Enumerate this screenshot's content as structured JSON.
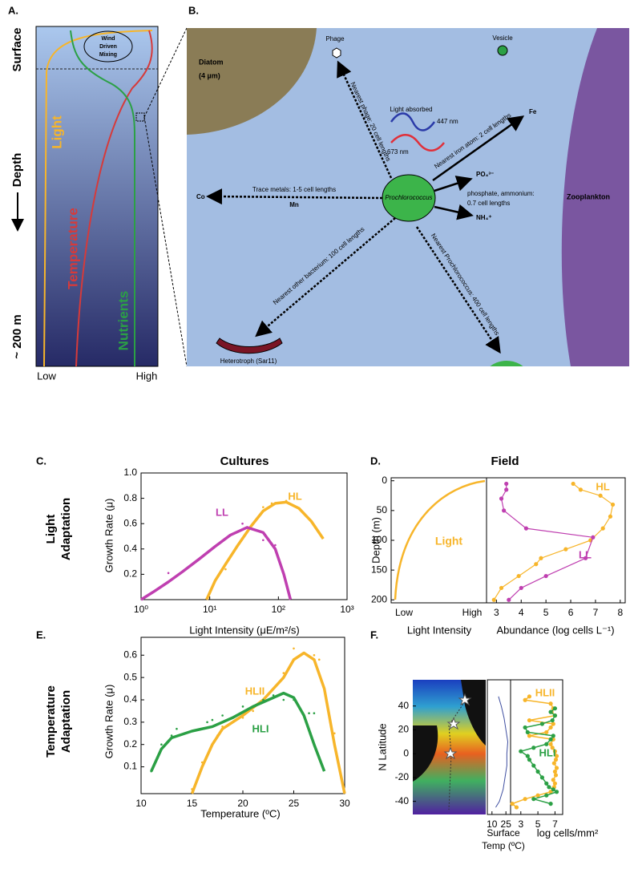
{
  "panels": {
    "a": {
      "label": "A.",
      "surface": "Surface",
      "depth": "Depth",
      "bottom": "~ 200 m",
      "low": "Low",
      "high": "High",
      "mixing": [
        "Wind",
        "Driven",
        "Mixing"
      ],
      "light": "Light",
      "temperature": "Temperature",
      "nutrients": "Nutrients"
    },
    "b": {
      "label": "B.",
      "diatom": "Diatom",
      "diatom_size": "(4 µm)",
      "phage": "Phage",
      "vesicle": "Vesicle",
      "light_absorbed": "Light absorbed",
      "nm447": "447 nm",
      "nm673": "673 nm",
      "nearest_phage": "Nearest phage: 20 cell lengths",
      "nearest_iron": "Nearest iron atom: 2 cell lengths",
      "fe": "Fe",
      "po4": "PO₄³⁻",
      "phosphate": [
        "phosphate, ammonium:",
        "0.7 cell lengths"
      ],
      "nh4": "NH₄⁺",
      "trace": "Trace metals: 1-5 cell lengths",
      "co": "Co",
      "mn": "Mn",
      "prochlorococcus": "Prochlorococcus",
      "zooplankton": "Zooplankton",
      "nearest_bacterium": "Nearest other bacterium: 100 cell lengths",
      "heterotroph": "Heterotroph (Sar11)",
      "nearest_pro": "Nearest Prochlorococcus: 400 cell lengths"
    },
    "c": {
      "label": "C.",
      "row_label": [
        "Light",
        "Adaptation"
      ]
    },
    "d": {
      "label": "D."
    },
    "e": {
      "label": "E.",
      "row_label": [
        "Temperature",
        "Adaptation"
      ]
    },
    "f": {
      "label": "F."
    }
  },
  "chart_data": [
    {
      "type": "line",
      "title": "Cultures",
      "x_label": "Light Intensity (μE/m²/s)",
      "y_label": "Growth Rate (μ)",
      "xlog": true,
      "xlim": [
        1,
        1000
      ],
      "ylim": [
        0,
        1
      ],
      "xticks": [
        {
          "value": 1,
          "label": "10⁰"
        },
        {
          "value": 10,
          "label": "10¹"
        },
        {
          "value": 100,
          "label": "10²"
        },
        {
          "value": 1000,
          "label": "10³"
        }
      ],
      "yticks": [
        0.2,
        0.4,
        0.6,
        0.8,
        {
          "value": 1,
          "label": "1.0"
        }
      ],
      "series": [
        {
          "name": "HL",
          "color": "#f7b52a",
          "x": [
            9,
            12,
            17,
            25,
            40,
            60,
            90,
            130,
            200,
            300,
            450
          ],
          "values": [
            0,
            0.15,
            0.28,
            0.42,
            0.58,
            0.7,
            0.76,
            0.77,
            0.72,
            0.62,
            0.48
          ],
          "points_x": [
            17,
            60,
            80,
            130
          ],
          "points_values": [
            0.24,
            0.73,
            0.76,
            0.78
          ]
        },
        {
          "name": "LL",
          "color": "#bf3fb0",
          "x": [
            1,
            1.5,
            2.5,
            4,
            7,
            12,
            20,
            35,
            60,
            90,
            120,
            150
          ],
          "values": [
            0,
            0.06,
            0.14,
            0.22,
            0.32,
            0.42,
            0.51,
            0.57,
            0.53,
            0.4,
            0.2,
            0
          ],
          "points_x": [
            2.5,
            12,
            30,
            60,
            90
          ],
          "points_values": [
            0.21,
            0.42,
            0.6,
            0.47,
            0.43
          ]
        }
      ]
    },
    {
      "type": "concept",
      "title": "Field",
      "x_label": "Light Intensity",
      "y_label": "Depth (m)",
      "categories": [
        "Low",
        "High"
      ],
      "curve_label": "Light",
      "color": "#f7b52a",
      "ylim": [
        -5,
        205
      ],
      "yinvert": true,
      "yticks": [
        0,
        50,
        100,
        150,
        200
      ]
    },
    {
      "type": "line",
      "x_label": "Abundance (log cells L⁻¹)",
      "xlim": [
        2.6,
        8.2
      ],
      "xticks": [
        3,
        4,
        5,
        6,
        7,
        8
      ],
      "ylim": [
        -5,
        205
      ],
      "yinvert": true,
      "series": [
        {
          "name": "HL",
          "color": "#f7b52a",
          "markers": true,
          "x": [
            6.1,
            6.4,
            7.2,
            7.7,
            7.6,
            7.3,
            6.8,
            5.8,
            4.8,
            4.6,
            3.9,
            3.2,
            2.9
          ],
          "values": [
            5,
            15,
            25,
            40,
            60,
            80,
            100,
            115,
            130,
            140,
            160,
            180,
            200
          ]
        },
        {
          "name": "LL",
          "color": "#bf3fb0",
          "markers": true,
          "x": [
            3.4,
            3.4,
            3.2,
            3.3,
            4.2,
            6.9,
            6.6,
            5,
            4,
            3.5
          ],
          "values": [
            5,
            15,
            30,
            50,
            80,
            95,
            130,
            160,
            180,
            200
          ]
        }
      ]
    },
    {
      "type": "line",
      "x_label": "Temperature (ºC)",
      "y_label": "Growth Rate (μ)",
      "xlim": [
        10,
        30
      ],
      "ylim": [
        -0.02,
        0.68
      ],
      "xticks": [
        10,
        15,
        20,
        25,
        30
      ],
      "yticks": [
        0.1,
        0.2,
        0.3,
        0.4,
        0.5,
        0.6
      ],
      "series": [
        {
          "name": "HLII",
          "color": "#f7b52a",
          "x": [
            15,
            16,
            17,
            18,
            20,
            22,
            24,
            25,
            26,
            27,
            28,
            29,
            30
          ],
          "values": [
            -0.02,
            0.1,
            0.2,
            0.27,
            0.33,
            0.4,
            0.5,
            0.58,
            0.61,
            0.58,
            0.45,
            0.2,
            -0.02
          ],
          "points_x": [
            15,
            16,
            17.5,
            18,
            20,
            21,
            22,
            23,
            24,
            25,
            26,
            27,
            27.5,
            28,
            29
          ],
          "points_values": [
            0,
            0.12,
            0.24,
            0.28,
            0.32,
            0.35,
            0.4,
            0.45,
            0.52,
            0.63,
            0.61,
            0.6,
            0.58,
            0.45,
            0.25
          ]
        },
        {
          "name": "HLI",
          "color": "#2ba045",
          "x": [
            11,
            12,
            13,
            15,
            17,
            19,
            21,
            23,
            24,
            25,
            26,
            27,
            28
          ],
          "values": [
            0.08,
            0.18,
            0.23,
            0.26,
            0.28,
            0.32,
            0.37,
            0.41,
            0.43,
            0.41,
            0.33,
            0.2,
            0.08
          ],
          "points_x": [
            11,
            12,
            13,
            13.5,
            16.5,
            17,
            18,
            20,
            22,
            23,
            24,
            25,
            26.5,
            27
          ],
          "points_values": [
            0.08,
            0.2,
            0.24,
            0.27,
            0.3,
            0.31,
            0.33,
            0.37,
            0.4,
            0.42,
            0.4,
            0.4,
            0.34,
            0.34
          ]
        }
      ]
    },
    {
      "type": "line",
      "x_label": [
        "Surface",
        "Temp (ºC)"
      ],
      "y_label": "N Latitude",
      "xlim": [
        5,
        30
      ],
      "ylim": [
        -51,
        62
      ],
      "xticks": [
        10,
        25
      ],
      "yticks": [
        -40,
        -20,
        0,
        20,
        40
      ],
      "series": [
        {
          "color": "#3e4ea0",
          "x": [
            17,
            20,
            23,
            25,
            27,
            26,
            26,
            24,
            22,
            18,
            14
          ],
          "values": [
            48,
            40,
            30,
            20,
            10,
            0,
            -10,
            -20,
            -30,
            -40,
            -45
          ]
        }
      ]
    },
    {
      "type": "line",
      "x_label": "log cells/mm²",
      "xlim": [
        1.8,
        7.9
      ],
      "ylim": [
        -51,
        62
      ],
      "xticks": [
        3,
        5,
        7
      ],
      "series": [
        {
          "name": "HLII",
          "color": "#f7b52a",
          "markers": true,
          "x": [
            4,
            3.5,
            6.5,
            6.8,
            6.6,
            7,
            4,
            6.8,
            6.5,
            6,
            4,
            6.8,
            6.5,
            6.7,
            7,
            7.2,
            7.1,
            6.9,
            7.2,
            7,
            7.1,
            6.8,
            7,
            6.9,
            6.5,
            5,
            3.5,
            2,
            2.5
          ],
          "values": [
            48,
            45,
            42,
            38,
            35,
            32,
            28,
            25,
            22,
            18,
            15,
            12,
            8,
            5,
            2,
            -2,
            -5,
            -8,
            -12,
            -15,
            -18,
            -22,
            -25,
            -28,
            -32,
            -35,
            -38,
            -42,
            -45
          ]
        },
        {
          "name": "HLI",
          "color": "#2ba045",
          "markers": true,
          "x": [
            7,
            6.5,
            7,
            6.7,
            5.5,
            3.5,
            3.8,
            6.8,
            6.5,
            6,
            4.5,
            3,
            3.8,
            4,
            4.5,
            5,
            5.5,
            6,
            6.3,
            6.8,
            7.2,
            6,
            4.5,
            6.5
          ],
          "values": [
            38,
            35,
            32,
            28,
            25,
            22,
            18,
            15,
            12,
            8,
            5,
            2,
            -2,
            -5,
            -10,
            -15,
            -20,
            -25,
            -28,
            -30,
            -32,
            -35,
            -38,
            -42
          ]
        }
      ]
    }
  ]
}
